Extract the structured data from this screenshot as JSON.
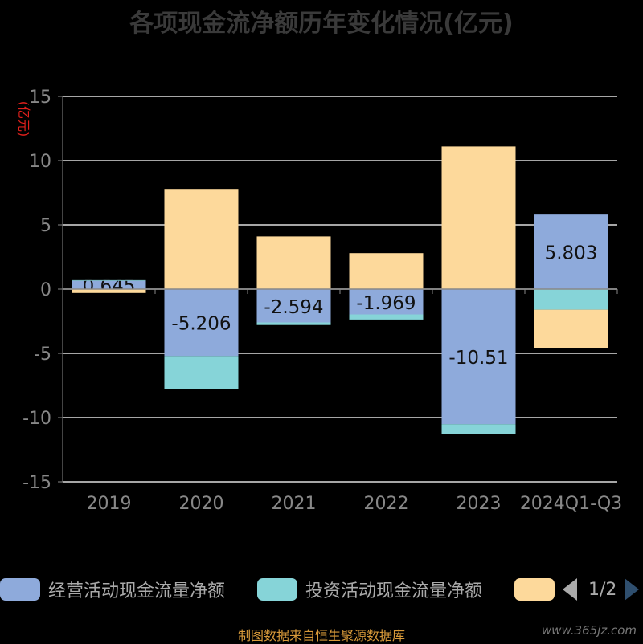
{
  "chart_data": {
    "type": "bar",
    "stacked": true,
    "title": "各项现金流净额历年变化情况(亿元)",
    "ylabel": "(亿元)",
    "ylim": [
      -15,
      15
    ],
    "yticks": [
      15,
      10,
      5,
      0,
      -5,
      -10,
      -15
    ],
    "categories": [
      "2019",
      "2020",
      "2021",
      "2022",
      "2023",
      "2024Q1-Q3"
    ],
    "series": [
      {
        "name": "经营活动现金流量净额",
        "color": "#8eaadb",
        "values": [
          0.645,
          -5.206,
          -2.594,
          -1.969,
          -10.51,
          5.803
        ],
        "labels": [
          "0.645",
          "-5.206",
          "-2.594",
          "-1.969",
          "-10.51",
          "5.803"
        ]
      },
      {
        "name": "投资活动现金流量净额",
        "color": "#86d4d8",
        "values": [
          0.05,
          -2.55,
          -0.2,
          -0.4,
          -0.8,
          -1.6
        ]
      },
      {
        "name": "",
        "color": "#fdd99b",
        "values": [
          -0.3,
          7.8,
          4.1,
          2.8,
          11.1,
          -3.0
        ]
      }
    ],
    "legend_position": "bottom",
    "grid": true
  },
  "legend": {
    "page": "1/2"
  },
  "footer": {
    "source": "制图数据来自恒生聚源数据库",
    "watermark": "www.365jz.com"
  }
}
